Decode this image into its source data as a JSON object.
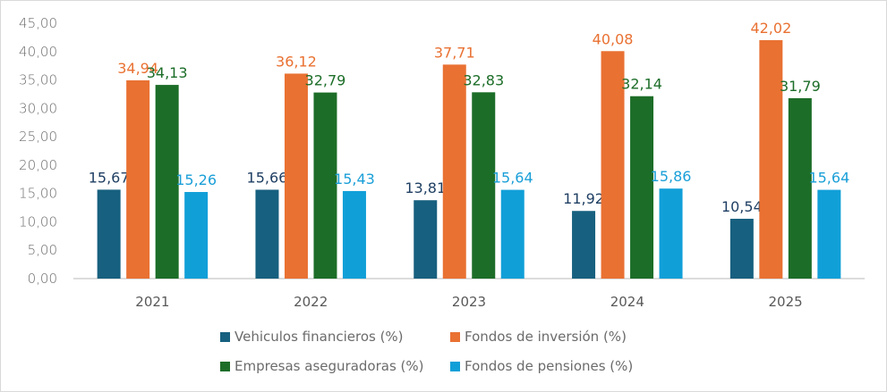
{
  "chart_data": {
    "type": "bar",
    "title": "",
    "xlabel": "",
    "ylabel": "",
    "ylim": [
      0,
      45
    ],
    "yticks": [
      "0,00",
      "5,00",
      "10,00",
      "15,00",
      "20,00",
      "25,00",
      "30,00",
      "35,00",
      "40,00",
      "45,00"
    ],
    "grid": false,
    "legend_position": "bottom",
    "categories": [
      "2021",
      "2022",
      "2023",
      "2024",
      "2025"
    ],
    "series": [
      {
        "name": "Vehiculos financieros (%)",
        "color": "#17607f",
        "values": [
          15.67,
          15.66,
          13.81,
          11.92,
          10.54
        ],
        "labels": [
          "15,67",
          "15,66",
          "13,81",
          "11,92",
          "10,54"
        ],
        "label_color": "#1f3f63"
      },
      {
        "name": "Fondos de inversión (%)",
        "color": "#e97132",
        "values": [
          34.94,
          36.12,
          37.71,
          40.08,
          42.02
        ],
        "labels": [
          "34,94",
          "36,12",
          "37,71",
          "40,08",
          "42,02"
        ],
        "label_color": "#e97132"
      },
      {
        "name": "Empresas aseguradoras (%)",
        "color": "#1c6d28",
        "values": [
          34.13,
          32.79,
          32.83,
          32.14,
          31.79
        ],
        "labels": [
          "34,13",
          "32,79",
          "32,83",
          "32,14",
          "31,79"
        ],
        "label_color": "#1c6d28"
      },
      {
        "name": "Fondos de pensiones (%)",
        "color": "#119fd8",
        "values": [
          15.26,
          15.43,
          15.64,
          15.86,
          15.64
        ],
        "labels": [
          "15,26",
          "15,43",
          "15,64",
          "15,86",
          "15,64"
        ],
        "label_color": "#1a9fd8"
      }
    ]
  }
}
